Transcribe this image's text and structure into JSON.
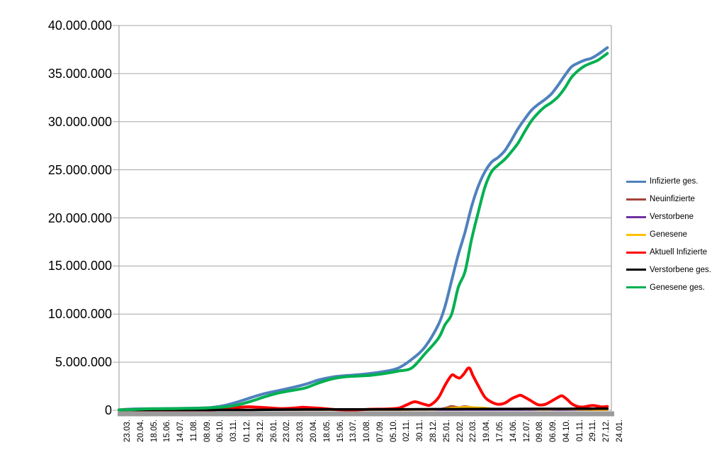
{
  "chart_data": {
    "type": "line",
    "title": "",
    "grid": true,
    "values_unit": "millions of persons",
    "x_axis": {
      "label_rotation_deg": 90,
      "categories": [
        "23.03.",
        "20.04.",
        "18.05.",
        "15.06.",
        "14.07.",
        "11.08.",
        "08.09.",
        "06.10.",
        "03.11.",
        "01.12.",
        "29.12.",
        "26.01.",
        "23.02.",
        "23.03.",
        "20.04.",
        "18.05.",
        "15.06.",
        "13.07.",
        "10.08.",
        "07.09.",
        "05.10.",
        "02.11.",
        "30.11.",
        "28.12.",
        "25.01.",
        "22.02.",
        "22.03.",
        "19.04.",
        "17.05.",
        "14.06.",
        "12.07.",
        "09.08.",
        "06.09.",
        "04.10.",
        "01.11.",
        "29.11.",
        "27.12.",
        "24.01."
      ]
    },
    "y_axis": {
      "min": 0,
      "max_millions": 40,
      "step_millions": 5,
      "tick_labels": [
        "0",
        "5.000.000",
        "10.000.000",
        "15.000.000",
        "20.000.000",
        "25.000.000",
        "30.000.000",
        "35.000.000",
        "40.000.000"
      ]
    },
    "legend": {
      "position": "right"
    },
    "series": [
      {
        "name": "Infizierte ges.",
        "color": "#4F81BD",
        "width": 4,
        "points": [
          [
            0,
            0.05
          ],
          [
            1,
            0.13
          ],
          [
            2,
            0.16
          ],
          [
            3,
            0.17
          ],
          [
            4,
            0.18
          ],
          [
            5,
            0.2
          ],
          [
            6,
            0.23
          ],
          [
            7,
            0.3
          ],
          [
            8,
            0.52
          ],
          [
            9,
            0.9
          ],
          [
            10,
            1.35
          ],
          [
            11,
            1.75
          ],
          [
            12,
            2.05
          ],
          [
            13,
            2.35
          ],
          [
            14,
            2.7
          ],
          [
            15,
            3.15
          ],
          [
            16,
            3.45
          ],
          [
            17,
            3.6
          ],
          [
            18,
            3.7
          ],
          [
            19,
            3.85
          ],
          [
            20,
            4.05
          ],
          [
            21,
            4.4
          ],
          [
            22,
            5.3
          ],
          [
            23,
            6.6
          ],
          [
            24,
            8.9
          ],
          [
            24.5,
            10.8
          ],
          [
            25,
            13.5
          ],
          [
            25.5,
            16.2
          ],
          [
            26,
            18.5
          ],
          [
            26.5,
            21.2
          ],
          [
            27,
            23.3
          ],
          [
            27.5,
            24.8
          ],
          [
            28,
            25.8
          ],
          [
            28.5,
            26.3
          ],
          [
            29,
            27.0
          ],
          [
            29.5,
            28.1
          ],
          [
            30,
            29.3
          ],
          [
            30.5,
            30.3
          ],
          [
            31,
            31.2
          ],
          [
            31.5,
            31.8
          ],
          [
            32,
            32.3
          ],
          [
            32.5,
            32.9
          ],
          [
            33,
            33.8
          ],
          [
            33.5,
            34.8
          ],
          [
            34,
            35.7
          ],
          [
            34.5,
            36.1
          ],
          [
            35,
            36.4
          ],
          [
            35.5,
            36.6
          ],
          [
            36,
            37.0
          ],
          [
            36.7,
            37.7
          ]
        ]
      },
      {
        "name": "Neuinfizierte",
        "color": "#A6443C",
        "width": 2.5,
        "points": [
          [
            0,
            0.01
          ],
          [
            1,
            0.005
          ],
          [
            2,
            0.004
          ],
          [
            3,
            0.002
          ],
          [
            4,
            0.002
          ],
          [
            5,
            0.003
          ],
          [
            6,
            0.006
          ],
          [
            7,
            0.012
          ],
          [
            8,
            0.025
          ],
          [
            9,
            0.03
          ],
          [
            10,
            0.032
          ],
          [
            11,
            0.02
          ],
          [
            12,
            0.012
          ],
          [
            13,
            0.018
          ],
          [
            14,
            0.022
          ],
          [
            15,
            0.012
          ],
          [
            16,
            0.005
          ],
          [
            17,
            0.002
          ],
          [
            18,
            0.004
          ],
          [
            19,
            0.008
          ],
          [
            20,
            0.009
          ],
          [
            21,
            0.02
          ],
          [
            22,
            0.06
          ],
          [
            23,
            0.05
          ],
          [
            24,
            0.12
          ],
          [
            24.6,
            0.28
          ],
          [
            25,
            0.45
          ],
          [
            25.5,
            0.32
          ],
          [
            26,
            0.42
          ],
          [
            26.5,
            0.32
          ],
          [
            27,
            0.26
          ],
          [
            27.5,
            0.18
          ],
          [
            28,
            0.1
          ],
          [
            29,
            0.06
          ],
          [
            30,
            0.12
          ],
          [
            31,
            0.08
          ],
          [
            32,
            0.05
          ],
          [
            33,
            0.1
          ],
          [
            34,
            0.07
          ],
          [
            35,
            0.04
          ],
          [
            36,
            0.035
          ],
          [
            36.7,
            0.025
          ]
        ]
      },
      {
        "name": "Verstorbene",
        "color": "#7030A0",
        "width": 2.5,
        "points": [
          [
            0,
            0.001
          ],
          [
            10,
            0.002
          ],
          [
            20,
            0.001
          ],
          [
            30,
            0.002
          ],
          [
            36.7,
            0.001
          ]
        ]
      },
      {
        "name": "Genesene",
        "color": "#FFC000",
        "width": 2.5,
        "points": [
          [
            0,
            0.003
          ],
          [
            1,
            0.01
          ],
          [
            2,
            0.008
          ],
          [
            3,
            0.002
          ],
          [
            4,
            0.002
          ],
          [
            5,
            0.002
          ],
          [
            6,
            0.004
          ],
          [
            7,
            0.008
          ],
          [
            8,
            0.018
          ],
          [
            9,
            0.026
          ],
          [
            10,
            0.03
          ],
          [
            11,
            0.026
          ],
          [
            12,
            0.015
          ],
          [
            13,
            0.016
          ],
          [
            14,
            0.022
          ],
          [
            15,
            0.018
          ],
          [
            16,
            0.008
          ],
          [
            17,
            0.003
          ],
          [
            18,
            0.003
          ],
          [
            19,
            0.007
          ],
          [
            20,
            0.009
          ],
          [
            21,
            0.015
          ],
          [
            22,
            0.045
          ],
          [
            23,
            0.055
          ],
          [
            24,
            0.09
          ],
          [
            25,
            0.28
          ],
          [
            25.5,
            0.3
          ],
          [
            26,
            0.36
          ],
          [
            26.5,
            0.33
          ],
          [
            27,
            0.3
          ],
          [
            27.5,
            0.26
          ],
          [
            28,
            0.17
          ],
          [
            29,
            0.09
          ],
          [
            30,
            0.11
          ],
          [
            31,
            0.1
          ],
          [
            32,
            0.07
          ],
          [
            33,
            0.1
          ],
          [
            34,
            0.09
          ],
          [
            35,
            0.06
          ],
          [
            36,
            0.04
          ],
          [
            36.7,
            0.03
          ]
        ]
      },
      {
        "name": "Aktuell Infizierte",
        "color": "#FF0000",
        "width": 4,
        "points": [
          [
            0,
            0.03
          ],
          [
            0.7,
            0.06
          ],
          [
            1,
            0.055
          ],
          [
            1.5,
            0.03
          ],
          [
            2,
            0.015
          ],
          [
            3,
            0.008
          ],
          [
            4,
            0.008
          ],
          [
            5,
            0.012
          ],
          [
            6,
            0.02
          ],
          [
            7,
            0.04
          ],
          [
            8,
            0.15
          ],
          [
            9,
            0.3
          ],
          [
            9.6,
            0.36
          ],
          [
            10,
            0.35
          ],
          [
            11,
            0.28
          ],
          [
            12,
            0.18
          ],
          [
            13,
            0.22
          ],
          [
            13.8,
            0.31
          ],
          [
            14,
            0.3
          ],
          [
            15,
            0.22
          ],
          [
            16,
            0.1
          ],
          [
            17,
            0.03
          ],
          [
            18,
            0.05
          ],
          [
            19,
            0.11
          ],
          [
            20,
            0.13
          ],
          [
            21,
            0.22
          ],
          [
            21.6,
            0.55
          ],
          [
            22,
            0.8
          ],
          [
            22.3,
            0.88
          ],
          [
            23,
            0.6
          ],
          [
            23.4,
            0.55
          ],
          [
            24,
            1.3
          ],
          [
            24.5,
            2.6
          ],
          [
            25,
            3.65
          ],
          [
            25.3,
            3.5
          ],
          [
            25.6,
            3.35
          ],
          [
            25.9,
            3.75
          ],
          [
            26.3,
            4.4
          ],
          [
            26.6,
            3.6
          ],
          [
            27,
            2.55
          ],
          [
            27.5,
            1.35
          ],
          [
            28,
            0.85
          ],
          [
            28.5,
            0.62
          ],
          [
            29,
            0.75
          ],
          [
            29.5,
            1.2
          ],
          [
            30,
            1.5
          ],
          [
            30.2,
            1.55
          ],
          [
            30.7,
            1.2
          ],
          [
            31,
            0.95
          ],
          [
            31.5,
            0.58
          ],
          [
            32,
            0.6
          ],
          [
            32.5,
            0.95
          ],
          [
            33,
            1.35
          ],
          [
            33.3,
            1.5
          ],
          [
            33.7,
            1.1
          ],
          [
            34,
            0.7
          ],
          [
            34.4,
            0.42
          ],
          [
            34.8,
            0.33
          ],
          [
            35.2,
            0.42
          ],
          [
            35.6,
            0.5
          ],
          [
            36,
            0.42
          ],
          [
            36.3,
            0.35
          ],
          [
            36.7,
            0.4
          ]
        ]
      },
      {
        "name": "Verstorbene ges.",
        "color": "#000000",
        "width": 3.5,
        "points": [
          [
            0,
            0.001
          ],
          [
            1,
            0.004
          ],
          [
            2,
            0.008
          ],
          [
            3,
            0.009
          ],
          [
            4,
            0.009
          ],
          [
            5,
            0.009
          ],
          [
            6,
            0.009
          ],
          [
            7,
            0.01
          ],
          [
            8,
            0.011
          ],
          [
            9,
            0.017
          ],
          [
            10,
            0.032
          ],
          [
            11,
            0.053
          ],
          [
            12,
            0.068
          ],
          [
            13,
            0.075
          ],
          [
            14,
            0.081
          ],
          [
            15,
            0.086
          ],
          [
            16,
            0.09
          ],
          [
            17,
            0.091
          ],
          [
            18,
            0.092
          ],
          [
            19,
            0.093
          ],
          [
            20,
            0.094
          ],
          [
            21,
            0.096
          ],
          [
            22,
            0.101
          ],
          [
            23,
            0.111
          ],
          [
            24,
            0.117
          ],
          [
            25,
            0.121
          ],
          [
            26,
            0.127
          ],
          [
            27,
            0.133
          ],
          [
            28,
            0.137
          ],
          [
            29,
            0.14
          ],
          [
            30,
            0.142
          ],
          [
            31,
            0.145
          ],
          [
            32,
            0.147
          ],
          [
            33,
            0.15
          ],
          [
            34,
            0.153
          ],
          [
            35,
            0.157
          ],
          [
            36,
            0.161
          ],
          [
            36.7,
            0.165
          ]
        ]
      },
      {
        "name": "Genesene ges.",
        "color": "#00B050",
        "width": 4,
        "points": [
          [
            0,
            0.02
          ],
          [
            1,
            0.07
          ],
          [
            2,
            0.14
          ],
          [
            3,
            0.16
          ],
          [
            4,
            0.17
          ],
          [
            5,
            0.19
          ],
          [
            6,
            0.21
          ],
          [
            7,
            0.27
          ],
          [
            8,
            0.36
          ],
          [
            9,
            0.58
          ],
          [
            10,
            0.97
          ],
          [
            11,
            1.42
          ],
          [
            12,
            1.8
          ],
          [
            13,
            2.06
          ],
          [
            14,
            2.32
          ],
          [
            15,
            2.84
          ],
          [
            16,
            3.26
          ],
          [
            17,
            3.48
          ],
          [
            18,
            3.56
          ],
          [
            19,
            3.65
          ],
          [
            20,
            3.83
          ],
          [
            21,
            4.08
          ],
          [
            22,
            4.4
          ],
          [
            23,
            5.89
          ],
          [
            24,
            7.48
          ],
          [
            24.5,
            8.9
          ],
          [
            25,
            10.0
          ],
          [
            25.5,
            12.8
          ],
          [
            26,
            14.4
          ],
          [
            26.5,
            17.8
          ],
          [
            27,
            20.6
          ],
          [
            27.5,
            23.2
          ],
          [
            28,
            24.8
          ],
          [
            28.5,
            25.5
          ],
          [
            29,
            26.1
          ],
          [
            29.5,
            26.9
          ],
          [
            30,
            27.8
          ],
          [
            30.5,
            29.0
          ],
          [
            31,
            30.1
          ],
          [
            31.5,
            30.9
          ],
          [
            32,
            31.55
          ],
          [
            32.5,
            32.0
          ],
          [
            33,
            32.6
          ],
          [
            33.5,
            33.5
          ],
          [
            34,
            34.6
          ],
          [
            34.5,
            35.3
          ],
          [
            35,
            35.8
          ],
          [
            35.5,
            36.1
          ],
          [
            36,
            36.4
          ],
          [
            36.7,
            37.1
          ]
        ]
      }
    ]
  },
  "style_colors": {
    "gridline": "#A6A6A6",
    "axis_line": "#A6A6A6",
    "bottom_axis_bar": "#9B9B9B",
    "background": "#FFFFFF",
    "text": "#000000"
  }
}
